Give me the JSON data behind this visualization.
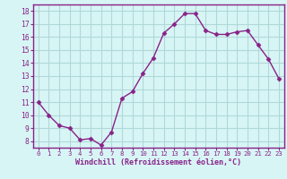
{
  "x": [
    0,
    1,
    2,
    3,
    4,
    5,
    6,
    7,
    8,
    9,
    10,
    11,
    12,
    13,
    14,
    15,
    16,
    17,
    18,
    19,
    20,
    21,
    22,
    23
  ],
  "y": [
    11.0,
    10.0,
    9.2,
    9.0,
    8.1,
    8.2,
    7.7,
    8.7,
    11.3,
    11.8,
    13.2,
    14.4,
    16.3,
    17.0,
    17.8,
    17.8,
    16.5,
    16.2,
    16.2,
    16.4,
    16.5,
    15.4,
    14.3,
    12.8
  ],
  "line_color": "#882288",
  "marker": "D",
  "marker_size": 2.5,
  "bg_color": "#d8f5f5",
  "grid_color": "#b0d8d8",
  "xlabel": "Windchill (Refroidissement éolien,°C)",
  "xlabel_color": "#882288",
  "tick_color": "#882288",
  "ylim": [
    7.5,
    18.5
  ],
  "xlim": [
    -0.5,
    23.5
  ],
  "yticks": [
    8,
    9,
    10,
    11,
    12,
    13,
    14,
    15,
    16,
    17,
    18
  ],
  "xticks": [
    0,
    1,
    2,
    3,
    4,
    5,
    6,
    7,
    8,
    9,
    10,
    11,
    12,
    13,
    14,
    15,
    16,
    17,
    18,
    19,
    20,
    21,
    22,
    23
  ]
}
